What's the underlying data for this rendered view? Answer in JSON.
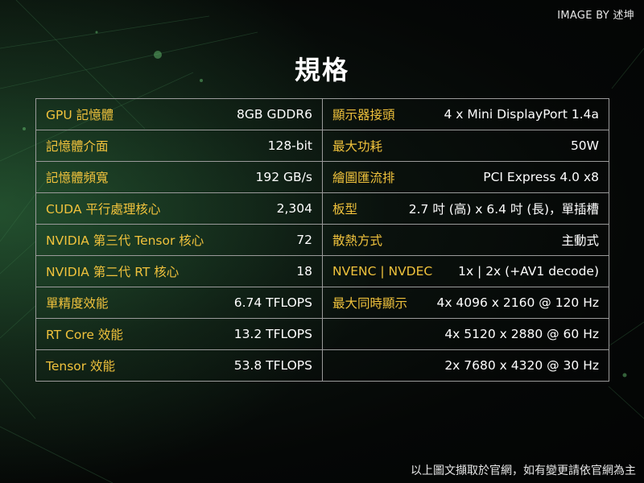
{
  "credit": "IMAGE BY 述坤",
  "title": "規格",
  "rows": [
    {
      "l_label": "GPU 記憶體",
      "l_value": "8GB GDDR6",
      "r_label": "顯示器接頭",
      "r_value": "4 x Mini DisplayPort 1.4a"
    },
    {
      "l_label": "記憶體介面",
      "l_value": "128-bit",
      "r_label": "最大功耗",
      "r_value": "50W"
    },
    {
      "l_label": "記憶體頻寬",
      "l_value": "192 GB/s",
      "r_label": "繪圖匯流排",
      "r_value": "PCI Express 4.0 x8"
    },
    {
      "l_label": "CUDA 平行處理核心",
      "l_value": "2,304",
      "r_label": "板型",
      "r_value": "2.7 吋 (高) x 6.4 吋 (長)，單插槽"
    },
    {
      "l_label": "NVIDIA 第三代 Tensor 核心",
      "l_value": "72",
      "r_label": "散熱方式",
      "r_value": "主動式"
    },
    {
      "l_label": "NVIDIA 第二代 RT 核心",
      "l_value": "18",
      "r_label": "NVENC | NVDEC",
      "r_value": "1x | 2x (+AV1 decode)"
    },
    {
      "l_label": "單精度效能",
      "l_value": "6.74 TFLOPS",
      "r_label": "最大同時顯示",
      "r_value": "4x 4096 x 2160 @ 120 Hz"
    },
    {
      "l_label": "RT Core 效能",
      "l_value": "13.2 TFLOPS",
      "r_label": "",
      "r_value": "4x 5120 x 2880 @ 60 Hz"
    },
    {
      "l_label": "Tensor 效能",
      "l_value": "53.8 TFLOPS",
      "r_label": "",
      "r_value": "2x 7680 x 4320 @ 30 Hz"
    }
  ],
  "footer": "以上圖文擷取於官網，如有變更請依官網為主",
  "colors": {
    "label": "#f0c23c",
    "value": "#ffffff",
    "border": "#9a9a9a",
    "background": "#050706"
  }
}
